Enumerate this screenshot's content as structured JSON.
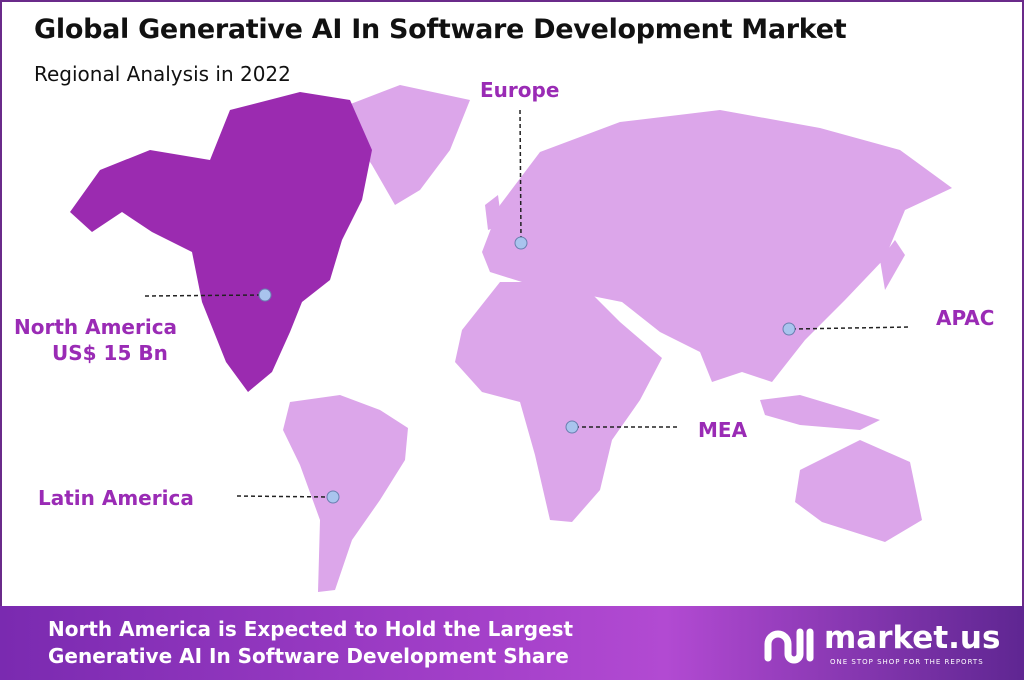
{
  "header": {
    "title": "Global Generative AI In Software Development Market",
    "subtitle": "Regional Analysis in 2022"
  },
  "colors": {
    "highlight_region": "#9b2bb0",
    "other_regions": "#dca6ea",
    "label": "#9a2bb5",
    "marker": "#a9c4ee"
  },
  "regions": [
    {
      "name": "North America",
      "value": "US$ 15 Bn",
      "highlighted": true
    },
    {
      "name": "Europe"
    },
    {
      "name": "APAC"
    },
    {
      "name": "MEA"
    },
    {
      "name": "Latin America"
    }
  ],
  "footer": {
    "line1": "North America is Expected to Hold the Largest",
    "line2": "Generative AI In Software Development  Share"
  },
  "logo": {
    "name": "market.us",
    "tagline": "ONE STOP SHOP FOR THE REPORTS"
  }
}
